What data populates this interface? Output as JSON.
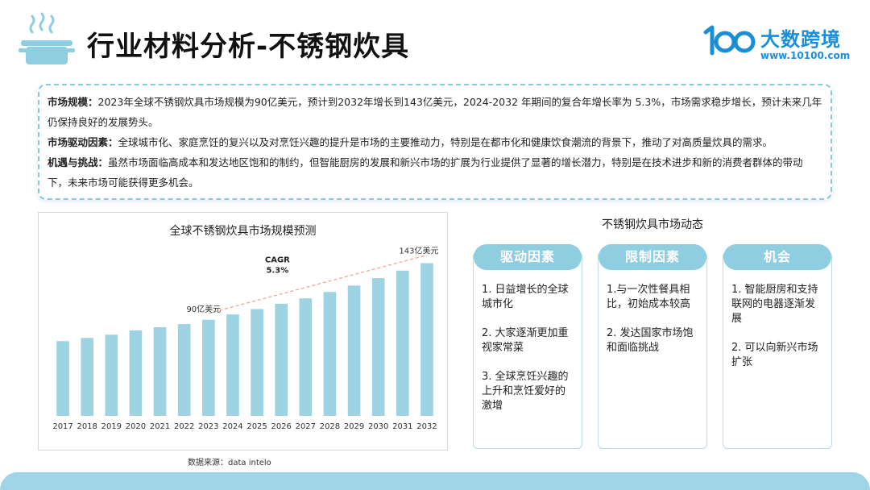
{
  "header": {
    "title": "行业材料分析-不锈钢炊具",
    "brand_name": "大数跨境",
    "brand_url": "www.10100.com",
    "logo_text": "100"
  },
  "summary": [
    {
      "label": "市场规模：",
      "text": "2023年全球不锈钢炊具市场规模为90亿美元，预计到2032年增长到143亿美元，2024-2032 年期间的复合年增长率为 5.3%，市场需求稳步增长，预计未来几年仍保持良好的发展势头。"
    },
    {
      "label": "市场驱动因素：",
      "text": "全球城市化、家庭烹饪的复兴以及对烹饪兴趣的提升是市场的主要推动力，特别是在都市化和健康饮食潮流的背景下，推动了对高质量炊具的需求。"
    },
    {
      "label": "机遇与挑战：",
      "text": "虽然市场面临高成本和发达地区饱和的制约，但智能厨房的发展和新兴市场的扩展为行业提供了显著的增长潜力，特别是在技术进步和新的消费者群体的带动下，未来市场可能获得更多机会。"
    }
  ],
  "chart_data": {
    "type": "bar",
    "title": "全球不锈钢炊具市场规模预测",
    "categories": [
      "2017",
      "2018",
      "2019",
      "2020",
      "2021",
      "2022",
      "2023",
      "2024",
      "2025",
      "2026",
      "2027",
      "2028",
      "2029",
      "2030",
      "2031",
      "2032"
    ],
    "values": [
      70,
      73,
      76,
      80,
      83,
      86,
      90,
      95,
      100,
      105,
      110,
      116,
      122,
      129,
      136,
      143
    ],
    "unit": "亿美元",
    "ylim": [
      0,
      160
    ],
    "bar_color": "#9dd3e3",
    "annotations": {
      "start_label": "90亿美元",
      "end_label": "143亿美元",
      "cagr_label": "CAGR",
      "cagr_value": "5.3%"
    },
    "trend_from": "2023",
    "trend_to": "2032",
    "grid": false,
    "source": "数据来源：data intelo"
  },
  "dynamics": {
    "title": "不锈钢炊具市场动态",
    "cards": [
      {
        "header": "驱动因素",
        "items": [
          "1. 日益增长的全球城市化",
          "2. 大家逐渐更加重视家常菜",
          "3. 全球烹饪兴趣的上升和烹饪爱好的激增"
        ]
      },
      {
        "header": "限制因素",
        "items": [
          "1.与一次性餐具相比，初始成本较高",
          "2. 发达国家市场饱和面临挑战"
        ]
      },
      {
        "header": "机会",
        "items": [
          "1. 智能厨房和支持联网的电器逐渐发展",
          "2. 可以向新兴市场扩张"
        ]
      }
    ]
  },
  "colors": {
    "accent": "#8fcde0",
    "brand": "#1a8fd8",
    "trend_line": "#f2a39a",
    "bottom_bar": "#9fd5e6"
  }
}
